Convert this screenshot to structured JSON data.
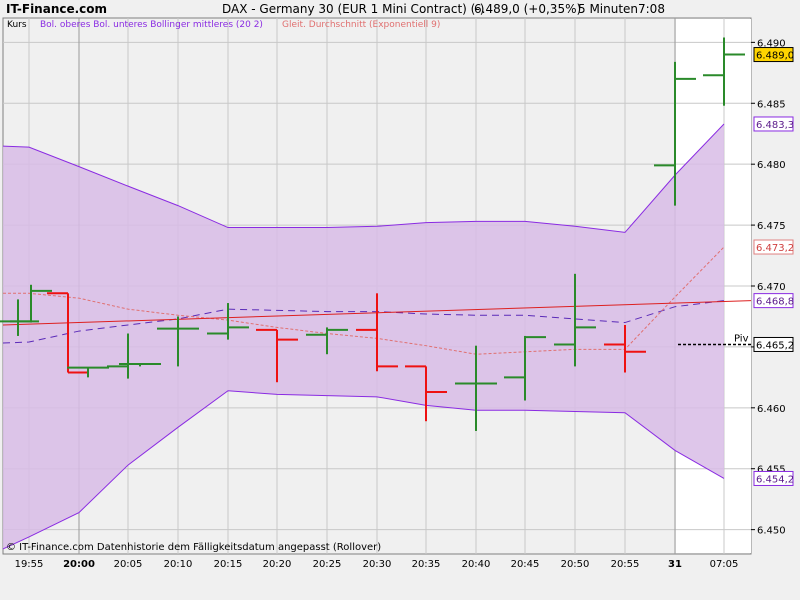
{
  "header": {
    "site": "IT-Finance.com",
    "instrument": "DAX - Germany 30 (EUR 1 Mini Contract) (-)",
    "last": "6.489,0 (+0,35%)",
    "interval": "5 Minuten",
    "time": "7:08"
  },
  "legend": {
    "price": "Kurs",
    "bollinger": "Bol. oberes Bol. unteres Bollinger mittleres (20 2)",
    "ema": "Gleit. Durchschnitt (Exponentiell 9)"
  },
  "footer": "© IT-Finance.com  Datenhistorie dem Fälligkeitsdatum angepasst (Rollover)",
  "colors": {
    "up": "#2a8a2a",
    "down": "#ee1111",
    "band_fill": "#d8bce6",
    "band_line": "#8a2be2",
    "middle_line": "#5a2ab8",
    "ema_line": "#e07070",
    "ref_line": "#dd2020",
    "bg": "#f0f0f0",
    "label_ema_border": "#e08080"
  },
  "chart_data": {
    "type": "ohlc",
    "x_labels": [
      "19:55",
      "20:00",
      "20:05",
      "20:10",
      "20:15",
      "20:20",
      "20:25",
      "20:30",
      "20:35",
      "20:40",
      "20:45",
      "20:50",
      "20:55",
      "31",
      "07:05"
    ],
    "bold_labels": [
      "20:00",
      "31"
    ],
    "ylim": [
      6448,
      6492
    ],
    "yticks": [
      "6.450",
      "6.455",
      "6.460",
      "6.465",
      "6.470",
      "6.475",
      "6.480",
      "6.485",
      "6.490"
    ],
    "grid": true,
    "ohlc": [
      {
        "x": "19:55",
        "o": 6467.1,
        "h": 6468.9,
        "l": 6465.9,
        "c": 6467.1
      },
      {
        "x": "19:57",
        "o": 6467.1,
        "h": 6470.1,
        "l": 6467.0,
        "c": 6469.6
      },
      {
        "x": "19:58",
        "o": 6469.4,
        "h": 6469.4,
        "l": 6462.9,
        "c": 6462.9
      },
      {
        "x": "20:02",
        "o": 6463.3,
        "h": 6463.3,
        "l": 6462.5,
        "c": 6463.3
      },
      {
        "x": "20:05",
        "o": 6463.4,
        "h": 6466.1,
        "l": 6462.4,
        "c": 6463.6
      },
      {
        "x": "20:08",
        "o": 6463.6,
        "h": 6463.6,
        "l": 6463.4,
        "c": 6463.6
      },
      {
        "x": "20:10",
        "o": 6466.5,
        "h": 6467.5,
        "l": 6463.4,
        "c": 6466.5
      },
      {
        "x": "20:15",
        "o": 6466.1,
        "h": 6468.6,
        "l": 6465.6,
        "c": 6466.6
      },
      {
        "x": "20:20",
        "o": 6466.4,
        "h": 6466.4,
        "l": 6462.1,
        "c": 6465.6
      },
      {
        "x": "20:25",
        "o": 6466.0,
        "h": 6466.6,
        "l": 6464.4,
        "c": 6466.4
      },
      {
        "x": "20:30",
        "o": 6466.4,
        "h": 6469.4,
        "l": 6463.0,
        "c": 6463.4
      },
      {
        "x": "20:35",
        "o": 6463.4,
        "h": 6463.4,
        "l": 6458.9,
        "c": 6461.3
      },
      {
        "x": "20:40",
        "o": 6462.0,
        "h": 6465.1,
        "l": 6458.1,
        "c": 6462.0
      },
      {
        "x": "20:45",
        "o": 6462.5,
        "h": 6465.9,
        "l": 6460.6,
        "c": 6465.8
      },
      {
        "x": "20:50",
        "o": 6465.2,
        "h": 6471.0,
        "l": 6463.4,
        "c": 6466.6
      },
      {
        "x": "20:55",
        "o": 6465.2,
        "h": 6466.8,
        "l": 6462.9,
        "c": 6464.6
      },
      {
        "x": "31",
        "o": 6479.9,
        "h": 6488.4,
        "l": 6476.6,
        "c": 6487.0
      },
      {
        "x": "07:05",
        "o": 6487.3,
        "h": 6490.4,
        "l": 6484.8,
        "c": 6489.0
      }
    ],
    "bollinger_upper": [
      6481.4,
      6479.8,
      6478.2,
      6476.6,
      6474.8,
      6474.8,
      6474.8,
      6474.9,
      6475.2,
      6475.3,
      6475.3,
      6474.9,
      6474.4,
      6479.1,
      6483.3
    ],
    "bollinger_lower": [
      6449.4,
      6451.4,
      6455.3,
      6458.4,
      6461.4,
      6461.1,
      6461.0,
      6460.9,
      6460.2,
      6459.8,
      6459.8,
      6459.7,
      6459.6,
      6456.5,
      6454.2
    ],
    "bollinger_middle": [
      6465.4,
      6466.3,
      6466.8,
      6467.3,
      6468.1,
      6468.0,
      6467.9,
      6467.9,
      6467.7,
      6467.6,
      6467.6,
      6467.3,
      6467.0,
      6468.3,
      6468.8
    ],
    "ema9": [
      6469.4,
      6469.0,
      6468.1,
      6467.6,
      6467.2,
      6466.6,
      6466.1,
      6465.7,
      6465.1,
      6464.4,
      6464.6,
      6464.8,
      6464.8,
      6469.1,
      6473.2
    ],
    "reference_line": {
      "from": 6466.8,
      "to": 6468.8
    },
    "pivot": {
      "label": "Piv",
      "value": 6465.2
    },
    "right_labels": [
      {
        "text": "6.489,0",
        "value": 6489.0,
        "style": "last"
      },
      {
        "text": "6.483,3",
        "value": 6483.3,
        "style": "band"
      },
      {
        "text": "6.473,2",
        "value": 6473.2,
        "style": "ema"
      },
      {
        "text": "6.468,8",
        "value": 6468.8,
        "style": "band"
      },
      {
        "text": "6.465,2",
        "value": 6465.2,
        "style": "pivot"
      },
      {
        "text": "6.454,2",
        "value": 6454.2,
        "style": "band"
      }
    ]
  }
}
